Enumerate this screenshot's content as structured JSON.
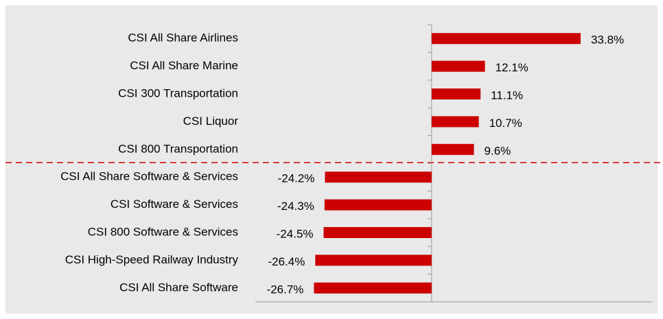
{
  "chart_data": {
    "type": "bar",
    "orientation": "horizontal",
    "categories": [
      "CSI All Share Airlines",
      "CSI All Share Marine",
      "CSI 300 Transportation",
      "CSI Liquor",
      "CSI 800 Transportation",
      "CSI All Share Software & Services",
      "CSI Software & Services",
      "CSI 800 Software & Services",
      "CSI High-Speed Railway Industry",
      "CSI All Share Software"
    ],
    "values": [
      33.8,
      12.1,
      11.1,
      10.7,
      9.6,
      -24.2,
      -24.3,
      -24.5,
      -26.4,
      -26.7
    ],
    "value_labels": [
      "33.8%",
      "12.1%",
      "11.1%",
      "10.7%",
      "9.6%",
      "-24.2%",
      "-24.3%",
      "-24.5%",
      "-26.4%",
      "-26.7%"
    ],
    "color": "#cc0000",
    "xlim": [
      -40,
      50
    ]
  }
}
